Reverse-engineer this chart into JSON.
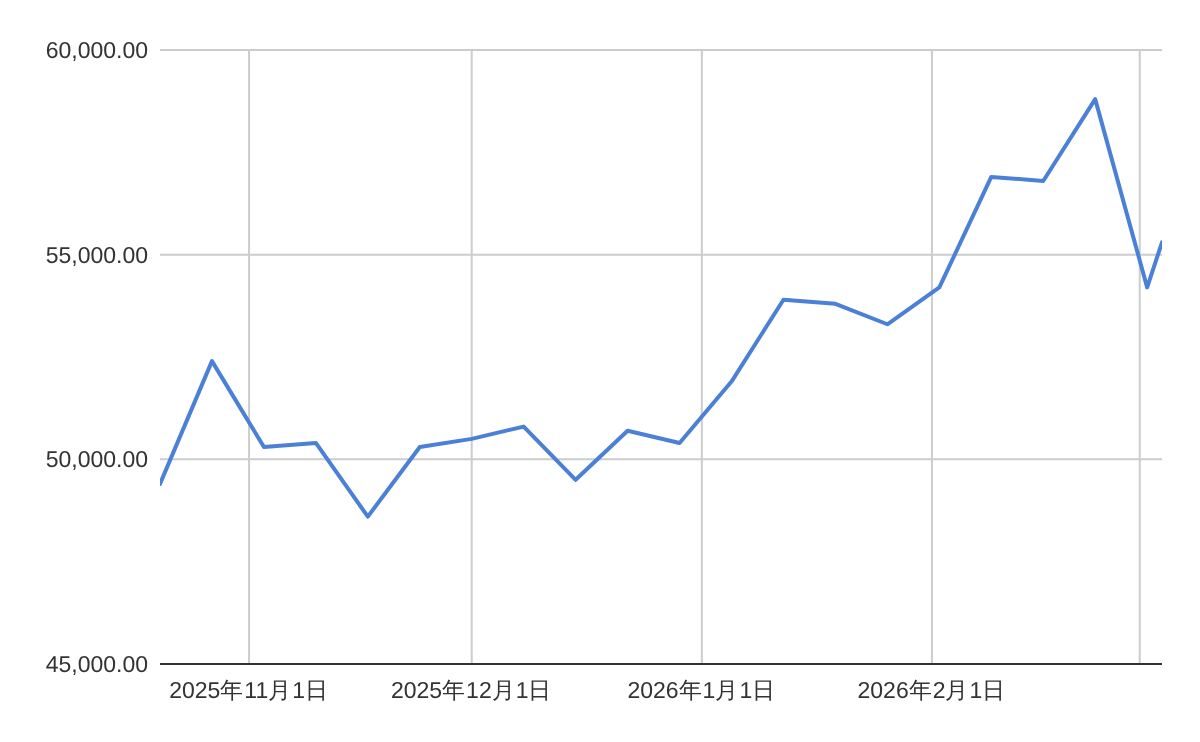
{
  "chart_data": {
    "type": "line",
    "x": [
      "2025-10-20",
      "2025-10-27",
      "2025-11-03",
      "2025-11-10",
      "2025-11-17",
      "2025-11-24",
      "2025-12-01",
      "2025-12-08",
      "2025-12-15",
      "2025-12-22",
      "2025-12-29",
      "2026-01-05",
      "2026-01-12",
      "2026-01-19",
      "2026-01-26",
      "2026-02-02",
      "2026-02-09",
      "2026-02-16",
      "2026-02-23",
      "2026-03-02",
      "2026-03-04"
    ],
    "series": [
      {
        "color": "#4a80d6",
        "values": [
          49400,
          52400,
          50300,
          50400,
          48600,
          50300,
          50500,
          50800,
          49500,
          50700,
          50400,
          51900,
          53900,
          53800,
          53300,
          54200,
          56900,
          56800,
          58800,
          54200,
          55300
        ]
      }
    ],
    "xlim": [
      "2025-10-20",
      "2026-03-04"
    ],
    "ylim": [
      45000,
      60000
    ],
    "xticks": [
      {
        "value": "2025-11-01",
        "label": "2025年11月1日"
      },
      {
        "value": "2025-12-01",
        "label": "2025年12月1日"
      },
      {
        "value": "2026-01-01",
        "label": "2026年1月1日"
      },
      {
        "value": "2026-02-01",
        "label": "2026年2月1日"
      },
      {
        "value": "2026-03-01",
        "label": null
      }
    ],
    "yticks": [
      {
        "value": 45000,
        "label": "45,000.00"
      },
      {
        "value": 50000,
        "label": "50,000.00"
      },
      {
        "value": 55000,
        "label": "55,000.00"
      },
      {
        "value": 60000,
        "label": "60,000.00"
      }
    ],
    "grid": true,
    "marker": "none"
  }
}
